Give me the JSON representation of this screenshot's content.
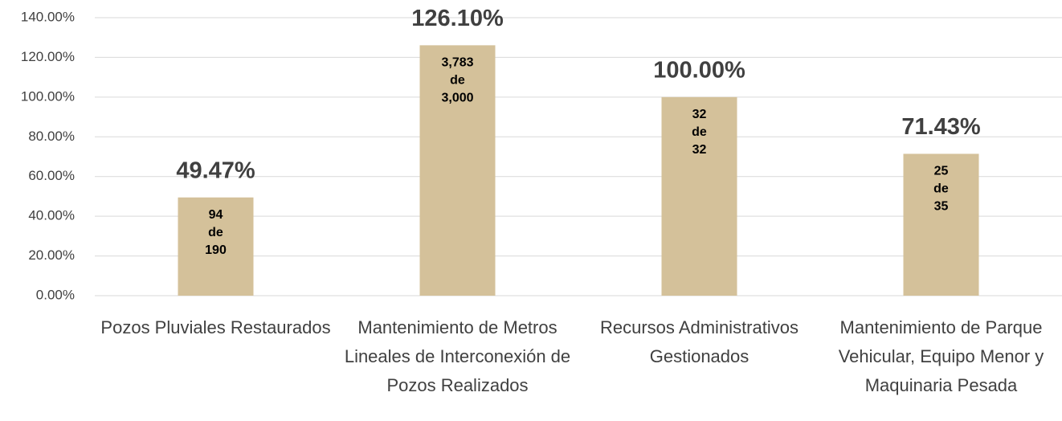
{
  "chart_data": {
    "type": "bar",
    "categories": [
      "Pozos Pluviales Restaurados",
      "Mantenimiento de Metros Lineales de Interconexión de Pozos Realizados",
      "Recursos Administrativos Gestionados",
      "Mantenimiento de Parque Vehicular, Equipo Menor y Maquinaria Pesada"
    ],
    "values": [
      49.47,
      126.1,
      100,
      71.43
    ],
    "value_labels": [
      "49.47%",
      "126.10%",
      "100.00%",
      "71.43%"
    ],
    "inner_labels": [
      [
        "94",
        "de",
        "190"
      ],
      [
        "3,783",
        "de",
        "3,000"
      ],
      [
        "32",
        "de",
        "32"
      ],
      [
        "25",
        "de",
        "35"
      ]
    ],
    "color": "#d4c19a",
    "ylim": [
      0,
      140
    ],
    "yticks": [
      {
        "value": 0,
        "label": "0.00%"
      },
      {
        "value": 20,
        "label": "20.00%"
      },
      {
        "value": 40,
        "label": "40.00%"
      },
      {
        "value": 60,
        "label": "60.00%"
      },
      {
        "value": 80,
        "label": "80.00%"
      },
      {
        "value": 100,
        "label": "100.00%"
      },
      {
        "value": 120,
        "label": "120.00%"
      },
      {
        "value": 140,
        "label": "140.00%"
      }
    ],
    "grid": true
  }
}
